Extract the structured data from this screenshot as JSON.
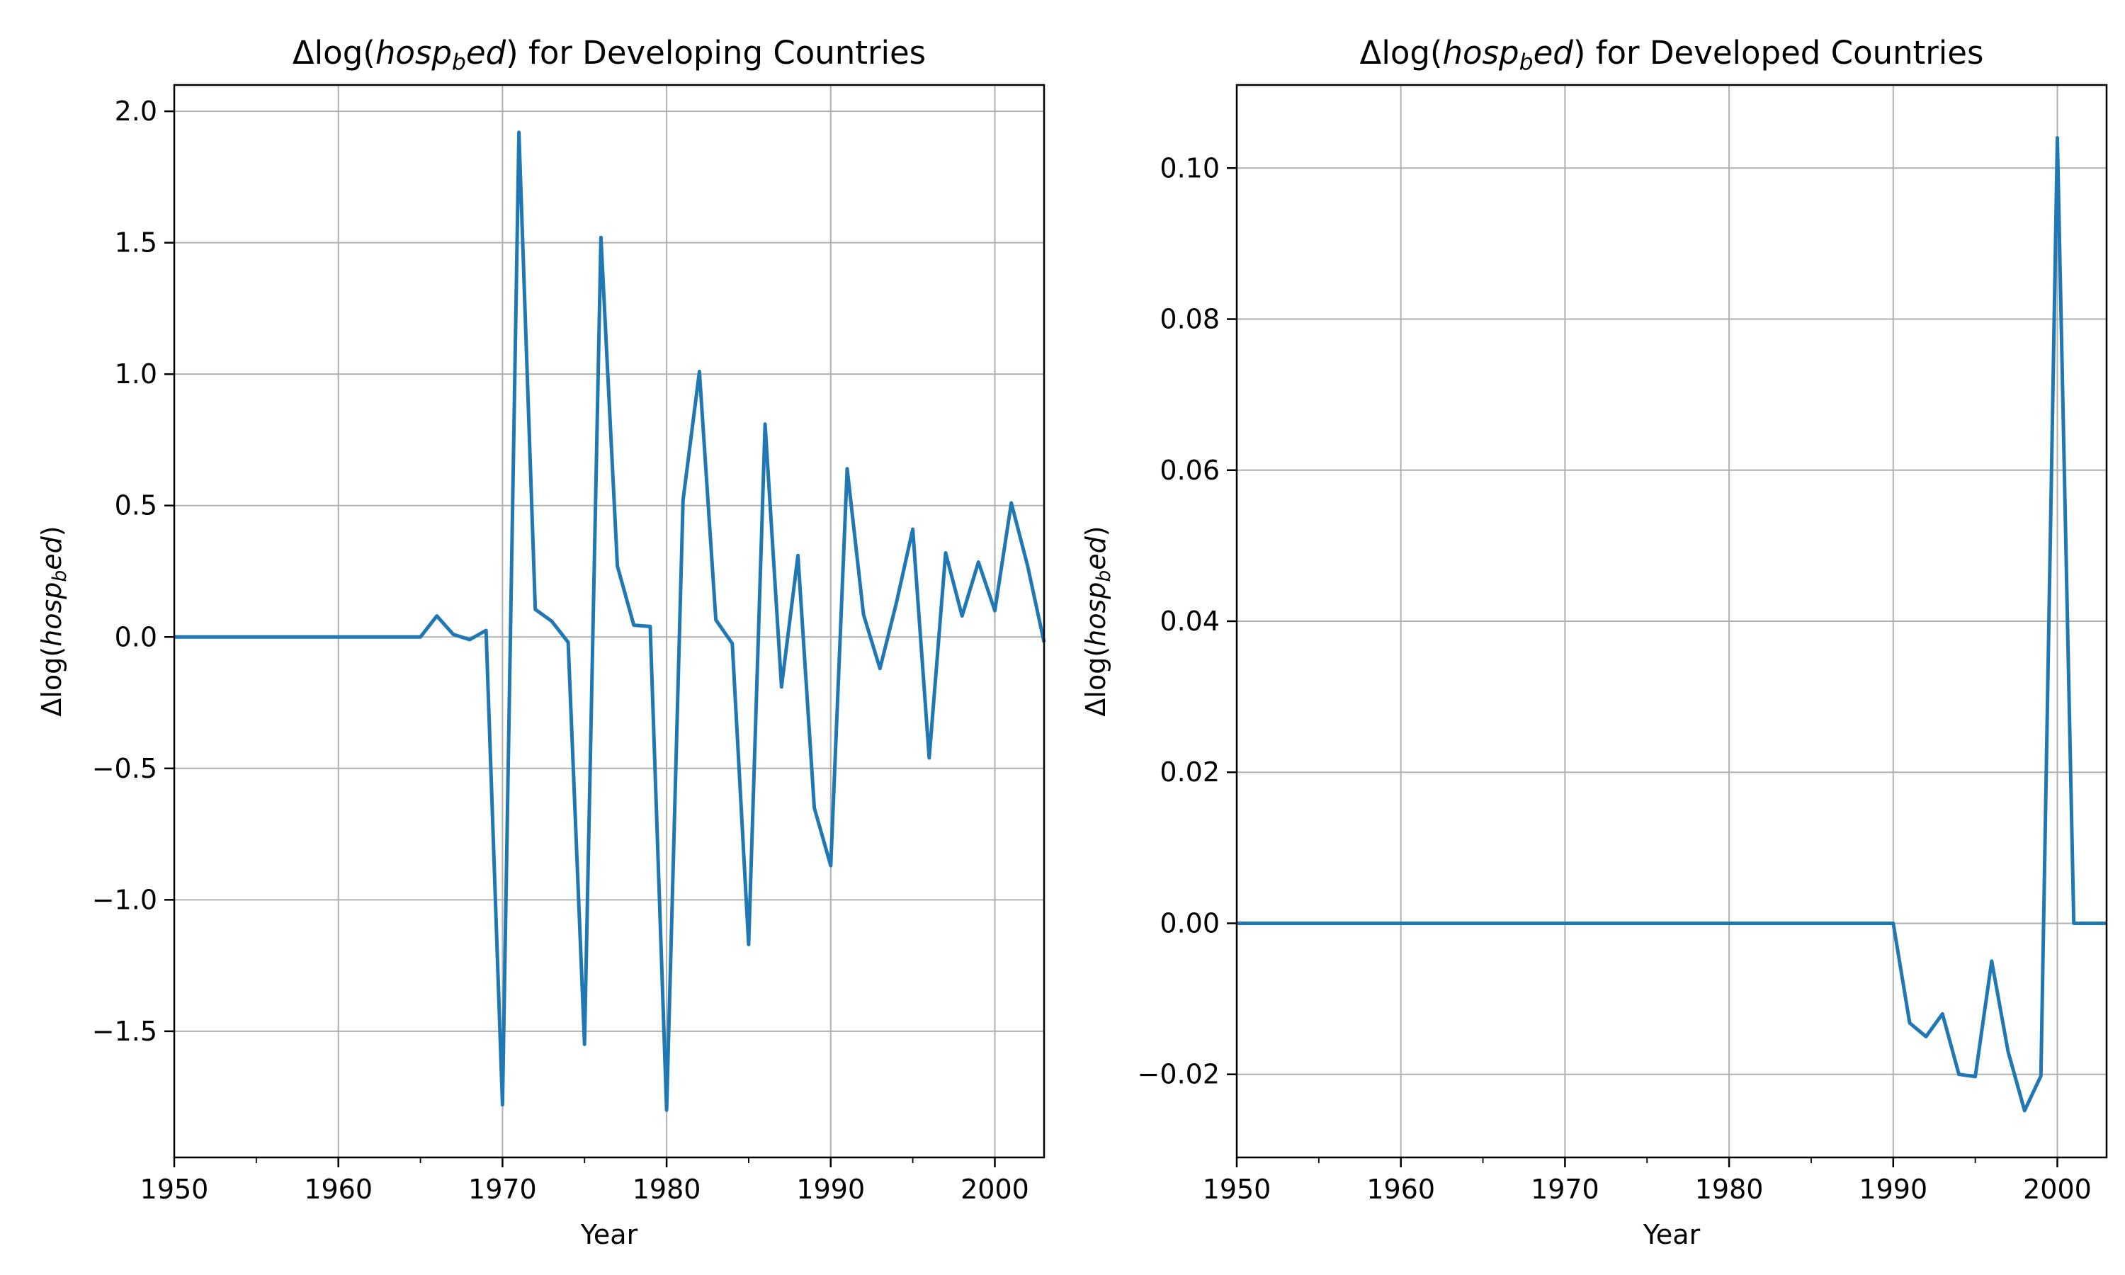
{
  "chart_data": [
    {
      "type": "line",
      "title": "Δlog(hosp_bed) for Developing Countries",
      "title_parts": {
        "prefix": "Δlog(",
        "var_a": "hosp",
        "var_sub": "b",
        "var_b": "ed",
        "suffix": ") for Developing Countries"
      },
      "xlabel": "Year",
      "ylabel": "Δlog(hosp_bed)",
      "ylabel_parts": {
        "prefix": "Δlog(",
        "var_a": "hosp",
        "var_sub": "b",
        "var_b": "ed",
        "suffix": ")"
      },
      "xlim": [
        1950,
        2003
      ],
      "ylim": [
        -1.98,
        2.1
      ],
      "xticks": [
        1950,
        1960,
        1970,
        1980,
        1990,
        2000
      ],
      "xtick_labels": [
        "1950",
        "1960",
        "1970",
        "1980",
        "1990",
        "2000"
      ],
      "yticks": [
        -1.5,
        -1.0,
        -0.5,
        0.0,
        0.5,
        1.0,
        1.5,
        2.0
      ],
      "ytick_labels": [
        "−1.5",
        "−1.0",
        "−0.5",
        "0.0",
        "0.5",
        "1.0",
        "1.5",
        "2.0"
      ],
      "grid": true,
      "series": [
        {
          "color": "#1f77b4",
          "x": [
            1950,
            1951,
            1952,
            1953,
            1954,
            1955,
            1956,
            1957,
            1958,
            1959,
            1960,
            1961,
            1962,
            1963,
            1964,
            1965,
            1966,
            1967,
            1968,
            1969,
            1970,
            1971,
            1972,
            1973,
            1974,
            1975,
            1976,
            1977,
            1978,
            1979,
            1980,
            1981,
            1982,
            1983,
            1984,
            1985,
            1986,
            1987,
            1988,
            1989,
            1990,
            1991,
            1992,
            1993,
            1994,
            1995,
            1996,
            1997,
            1998,
            1999,
            2000,
            2001,
            2002,
            2003
          ],
          "y": [
            0,
            0,
            0,
            0,
            0,
            0,
            0,
            0,
            0,
            0,
            0,
            0,
            0,
            0,
            0,
            0,
            0.08,
            0.01,
            -0.01,
            0.025,
            -1.78,
            1.92,
            0.105,
            0.06,
            -0.02,
            -1.55,
            1.52,
            0.27,
            0.045,
            0.04,
            -1.8,
            0.52,
            1.01,
            0.065,
            -0.025,
            -1.17,
            0.81,
            -0.19,
            0.31,
            -0.65,
            -0.87,
            0.64,
            0.085,
            -0.12,
            0.13,
            0.41,
            -0.46,
            0.32,
            0.08,
            0.285,
            0.1,
            0.51,
            0.27,
            -0.02
          ]
        }
      ]
    },
    {
      "type": "line",
      "title": "Δlog(hosp_bed) for Developed Countries",
      "title_parts": {
        "prefix": "Δlog(",
        "var_a": "hosp",
        "var_sub": "b",
        "var_b": "ed",
        "suffix": ") for Developed Countries"
      },
      "xlabel": "Year",
      "ylabel": "Δlog(hosp_bed)",
      "ylabel_parts": {
        "prefix": "Δlog(",
        "var_a": "hosp",
        "var_sub": "b",
        "var_b": "ed",
        "suffix": ")"
      },
      "xlim": [
        1950,
        2003
      ],
      "ylim": [
        -0.031,
        0.111
      ],
      "xticks": [
        1950,
        1960,
        1970,
        1980,
        1990,
        2000
      ],
      "xtick_labels": [
        "1950",
        "1960",
        "1970",
        "1980",
        "1990",
        "2000"
      ],
      "yticks": [
        -0.02,
        0.0,
        0.02,
        0.04,
        0.06,
        0.08,
        0.1
      ],
      "ytick_labels": [
        "−0.02",
        "0.00",
        "0.02",
        "0.04",
        "0.06",
        "0.08",
        "0.10"
      ],
      "grid": true,
      "series": [
        {
          "color": "#1f77b4",
          "x": [
            1950,
            1955,
            1960,
            1965,
            1970,
            1975,
            1980,
            1985,
            1990,
            1991,
            1992,
            1993,
            1994,
            1995,
            1996,
            1997,
            1998,
            1999,
            2000,
            2001,
            2002,
            2003
          ],
          "y": [
            0,
            0,
            0,
            0,
            0,
            0,
            0,
            0,
            0,
            -0.0132,
            -0.015,
            -0.012,
            -0.02,
            -0.0203,
            -0.005,
            -0.017,
            -0.0248,
            -0.0202,
            0.104,
            0,
            0,
            0
          ]
        }
      ]
    }
  ]
}
